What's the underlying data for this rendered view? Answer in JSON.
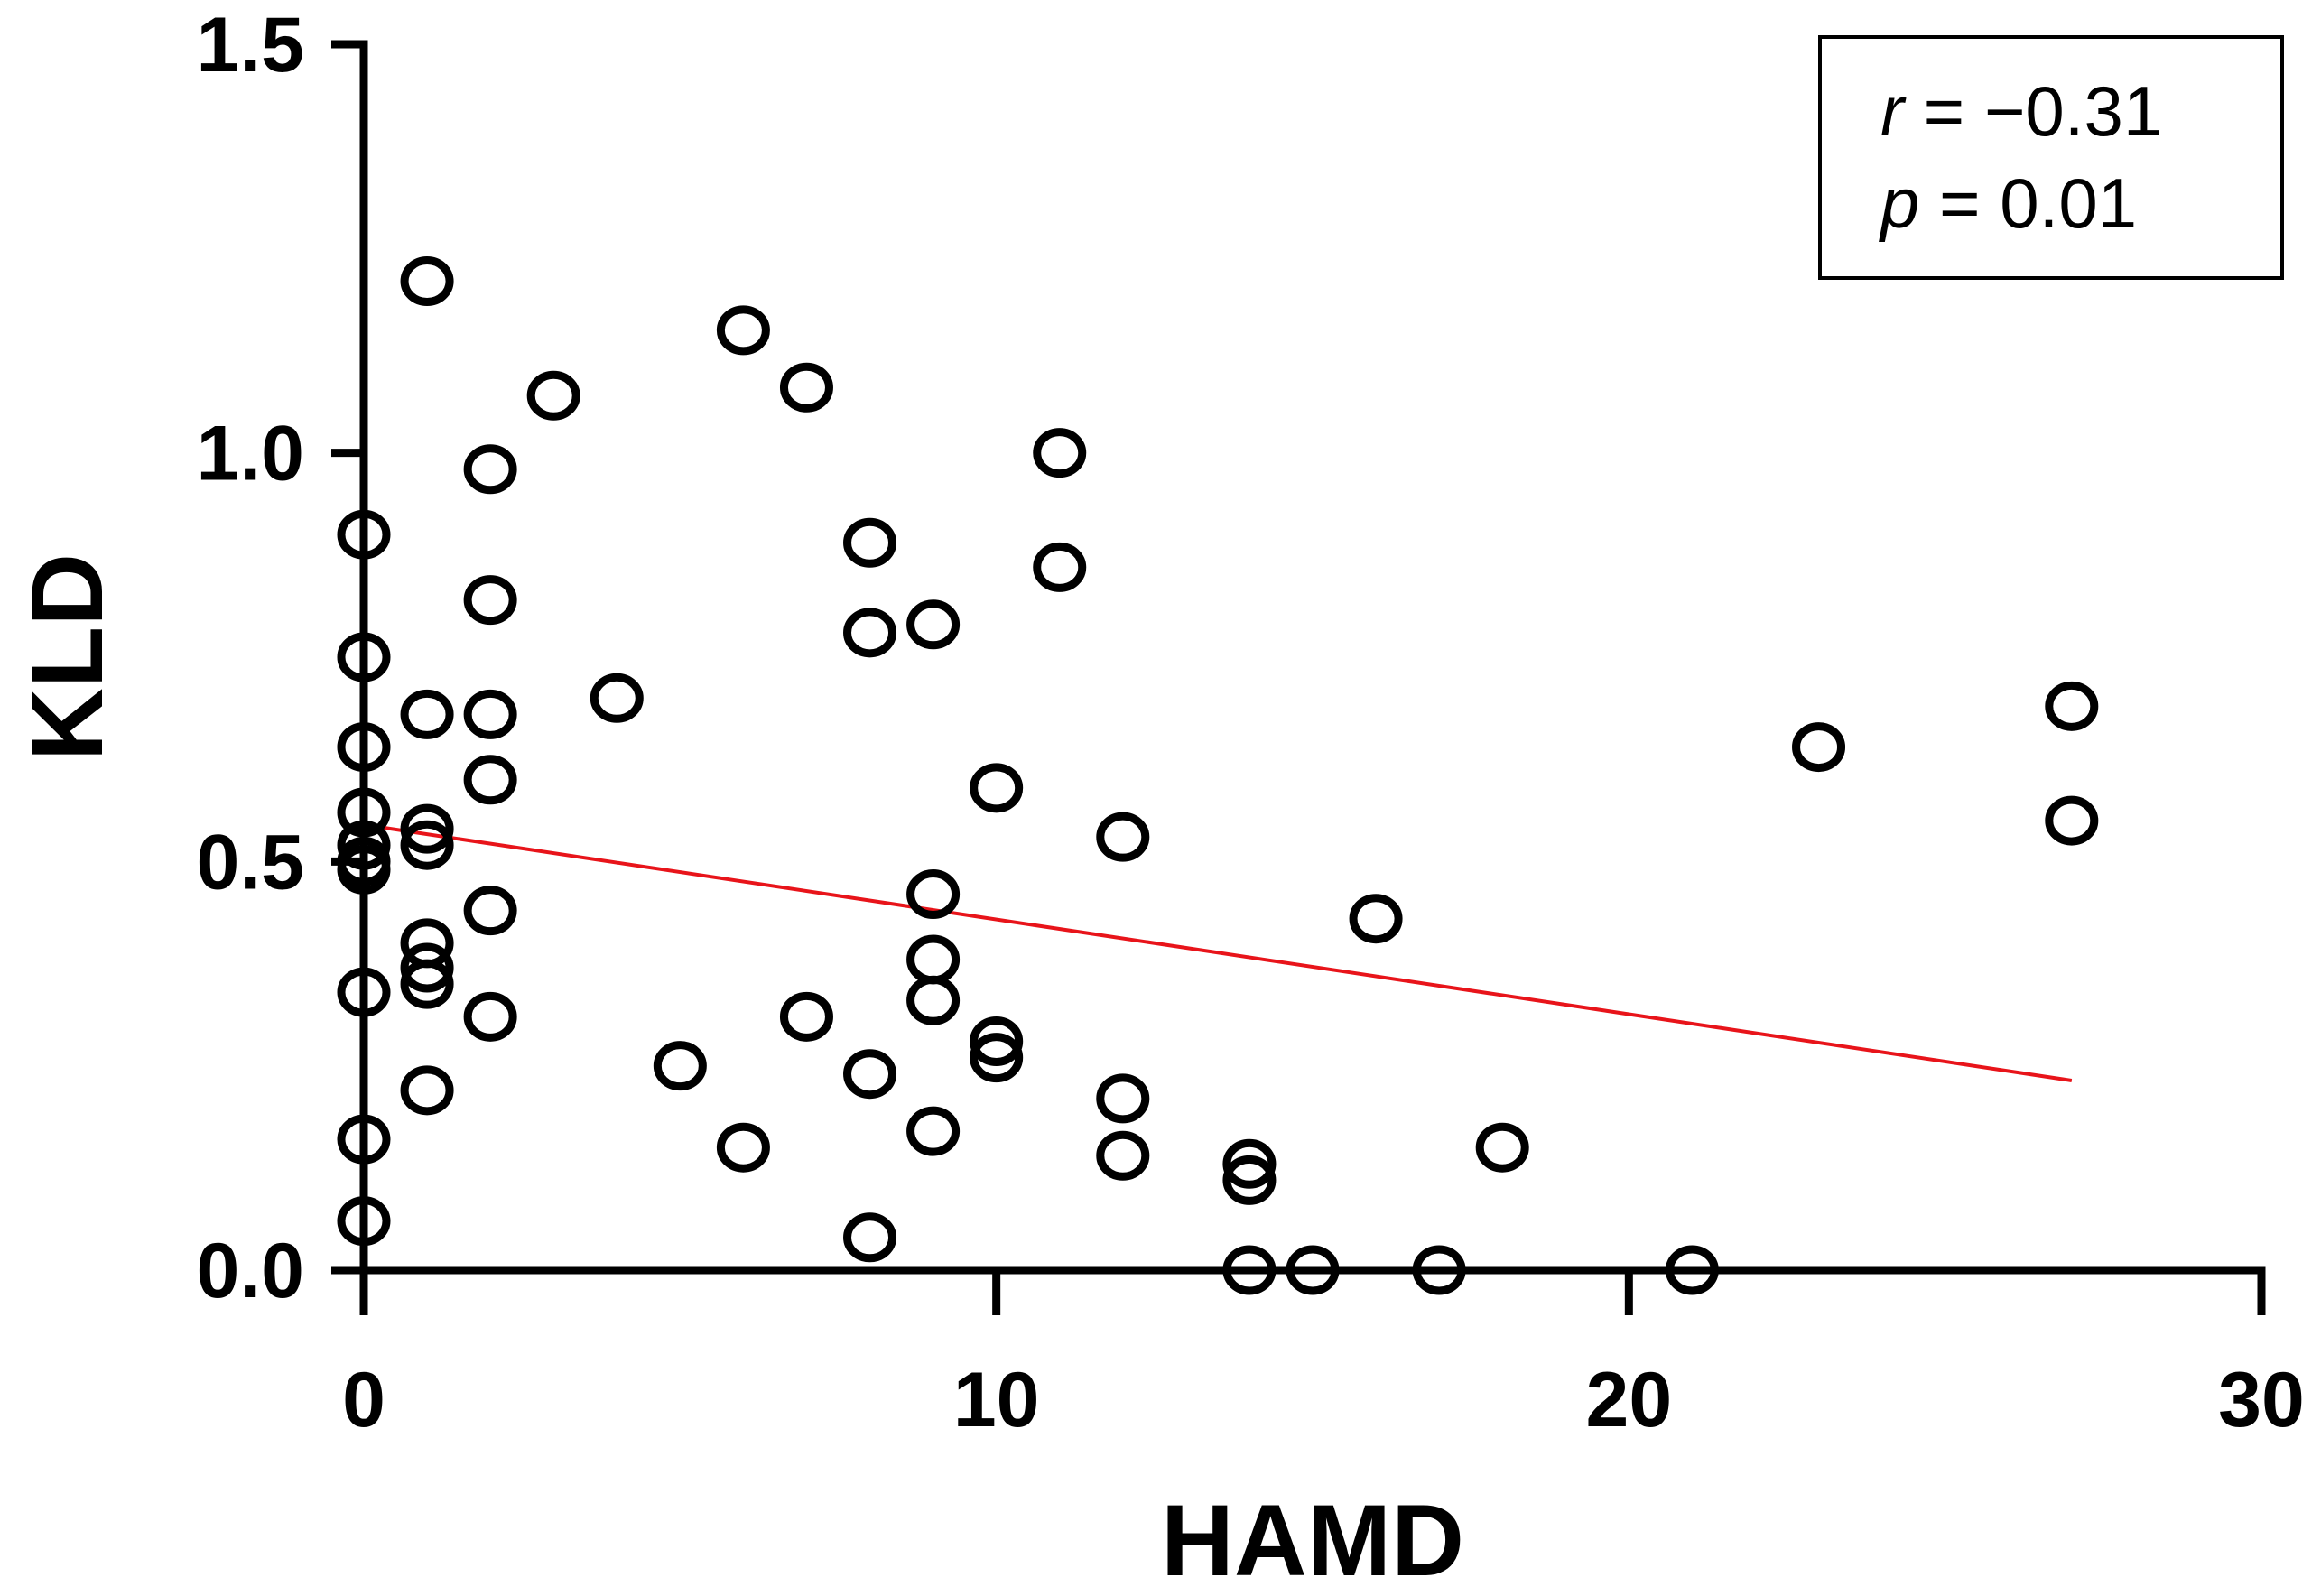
{
  "chart_data": {
    "type": "scatter",
    "xlabel": "HAMD",
    "ylabel": "KLD",
    "xlim": [
      0,
      30
    ],
    "ylim": [
      0,
      1.5
    ],
    "x_ticks": [
      "0",
      "10",
      "20",
      "30"
    ],
    "y_ticks": [
      "0.0",
      "0.5",
      "1.0",
      "1.5"
    ],
    "annotation": {
      "r_symbol": "r",
      "r_value": " = −0.31",
      "p_symbol": "p",
      "p_value": " = 0.01"
    },
    "trendline": {
      "color": "#e8141a",
      "x": [
        0,
        27
      ],
      "y": [
        0.545,
        0.232
      ]
    },
    "points": [
      {
        "x": 0,
        "y": 0.9
      },
      {
        "x": 0,
        "y": 0.75
      },
      {
        "x": 0,
        "y": 0.64
      },
      {
        "x": 0,
        "y": 0.56
      },
      {
        "x": 0,
        "y": 0.52
      },
      {
        "x": 0,
        "y": 0.5
      },
      {
        "x": 0,
        "y": 0.49
      },
      {
        "x": 0,
        "y": 0.34
      },
      {
        "x": 0,
        "y": 0.16
      },
      {
        "x": 0,
        "y": 0.06
      },
      {
        "x": 1,
        "y": 1.21
      },
      {
        "x": 1,
        "y": 0.68
      },
      {
        "x": 1,
        "y": 0.54
      },
      {
        "x": 1,
        "y": 0.52
      },
      {
        "x": 1,
        "y": 0.4
      },
      {
        "x": 1,
        "y": 0.37
      },
      {
        "x": 1,
        "y": 0.35
      },
      {
        "x": 1,
        "y": 0.22
      },
      {
        "x": 2,
        "y": 0.98
      },
      {
        "x": 2,
        "y": 0.82
      },
      {
        "x": 2,
        "y": 0.68
      },
      {
        "x": 2,
        "y": 0.6
      },
      {
        "x": 2,
        "y": 0.44
      },
      {
        "x": 2,
        "y": 0.31
      },
      {
        "x": 3,
        "y": 1.07
      },
      {
        "x": 4,
        "y": 0.7
      },
      {
        "x": 5,
        "y": 0.25
      },
      {
        "x": 6,
        "y": 1.15
      },
      {
        "x": 6,
        "y": 0.15
      },
      {
        "x": 7,
        "y": 1.08
      },
      {
        "x": 7,
        "y": 0.31
      },
      {
        "x": 8,
        "y": 0.89
      },
      {
        "x": 8,
        "y": 0.78
      },
      {
        "x": 8,
        "y": 0.24
      },
      {
        "x": 8,
        "y": 0.04
      },
      {
        "x": 9,
        "y": 0.79
      },
      {
        "x": 9,
        "y": 0.46
      },
      {
        "x": 9,
        "y": 0.38
      },
      {
        "x": 9,
        "y": 0.33
      },
      {
        "x": 9,
        "y": 0.17
      },
      {
        "x": 10,
        "y": 0.59
      },
      {
        "x": 10,
        "y": 0.28
      },
      {
        "x": 10,
        "y": 0.26
      },
      {
        "x": 11,
        "y": 1.0
      },
      {
        "x": 11,
        "y": 0.86
      },
      {
        "x": 12,
        "y": 0.53
      },
      {
        "x": 12,
        "y": 0.21
      },
      {
        "x": 12,
        "y": 0.14
      },
      {
        "x": 14,
        "y": 0.13
      },
      {
        "x": 14,
        "y": 0.11
      },
      {
        "x": 14,
        "y": 0.0
      },
      {
        "x": 15,
        "y": 0.0
      },
      {
        "x": 16,
        "y": 0.43
      },
      {
        "x": 17,
        "y": 0.0
      },
      {
        "x": 18,
        "y": 0.15
      },
      {
        "x": 21,
        "y": 0.0
      },
      {
        "x": 23,
        "y": 0.64
      },
      {
        "x": 27,
        "y": 0.69
      },
      {
        "x": 27,
        "y": 0.55
      }
    ]
  }
}
